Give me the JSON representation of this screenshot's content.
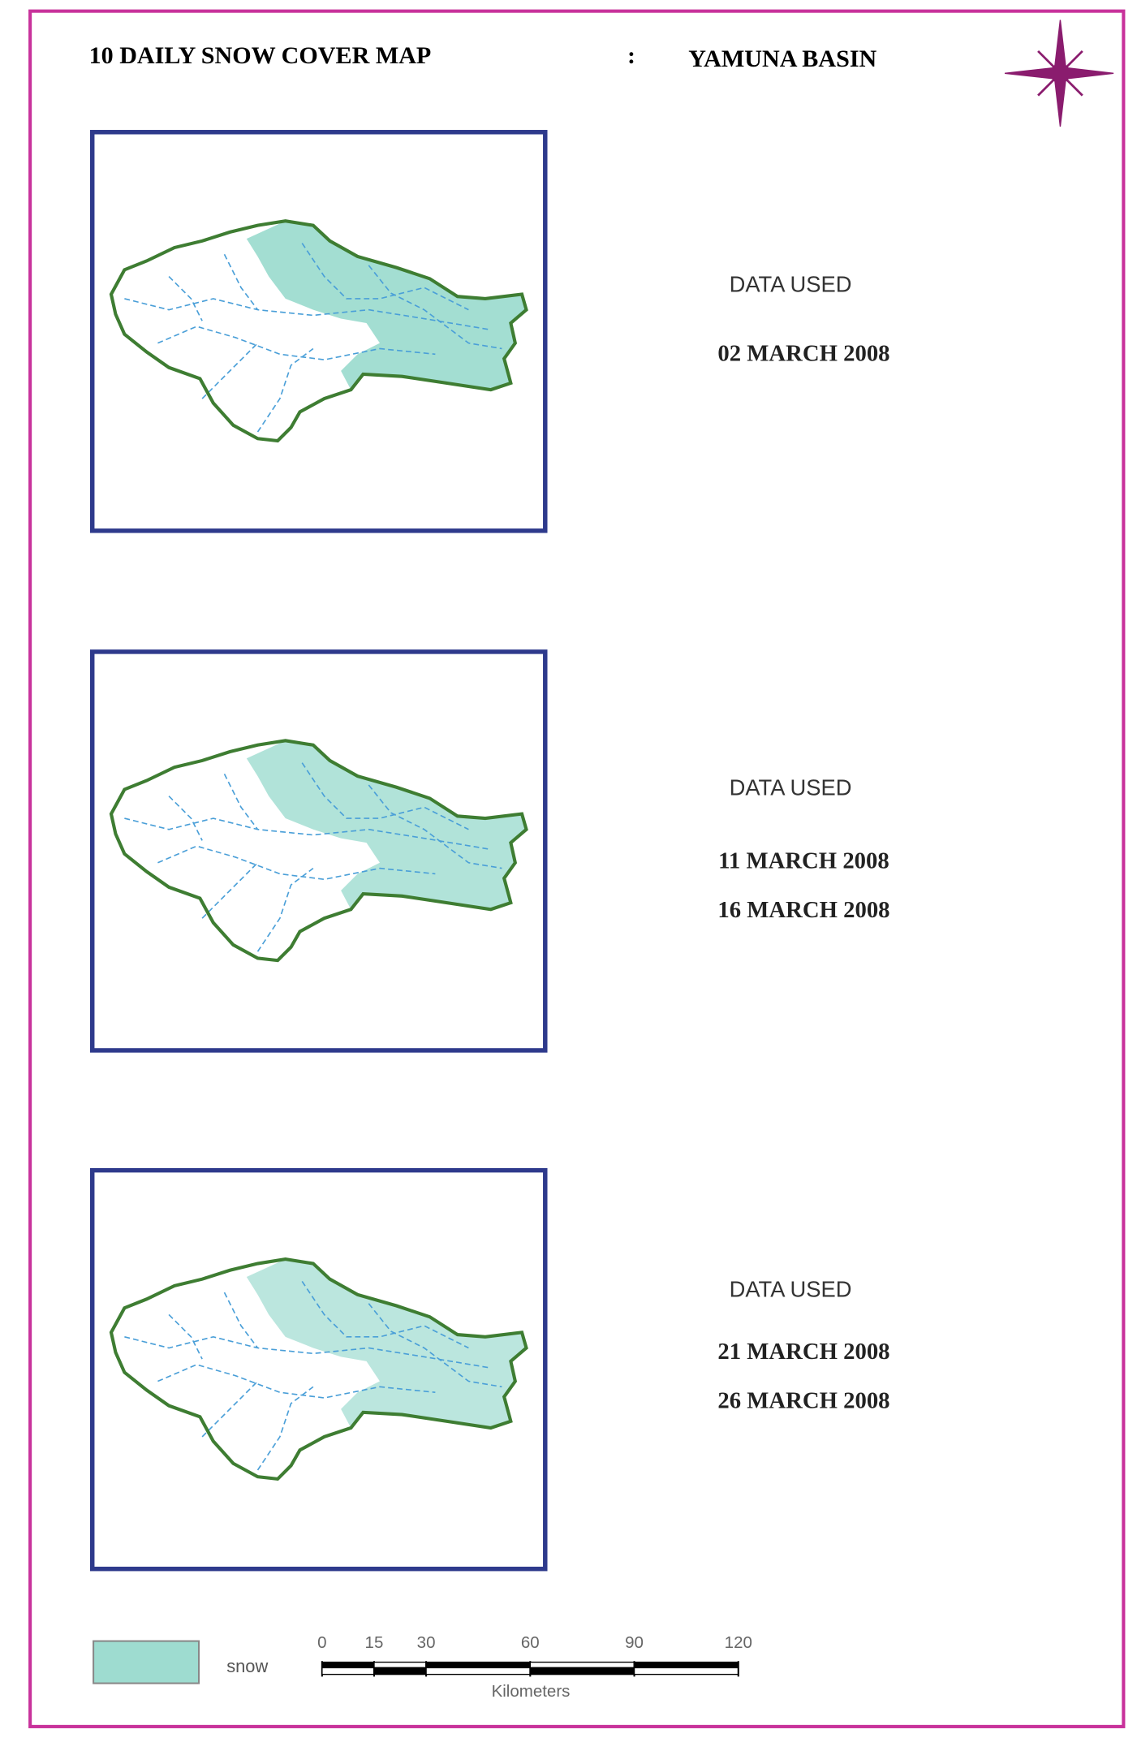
{
  "header": {
    "title": "10 DAILY SNOW COVER MAP",
    "separator": ":",
    "basin": "YAMUNA BASIN"
  },
  "panels": [
    {
      "label": "DATA USED",
      "dates": [
        "02 MARCH 2008"
      ]
    },
    {
      "label": "DATA USED",
      "dates": [
        "11 MARCH 2008",
        "16 MARCH 2008"
      ]
    },
    {
      "label": "DATA USED",
      "dates": [
        "21 MARCH 2008",
        "26 MARCH 2008"
      ]
    }
  ],
  "legend": {
    "label": "snow"
  },
  "scale_bar": {
    "ticks": [
      0,
      15,
      30,
      60,
      90,
      120
    ],
    "unit": "Kilometers"
  }
}
